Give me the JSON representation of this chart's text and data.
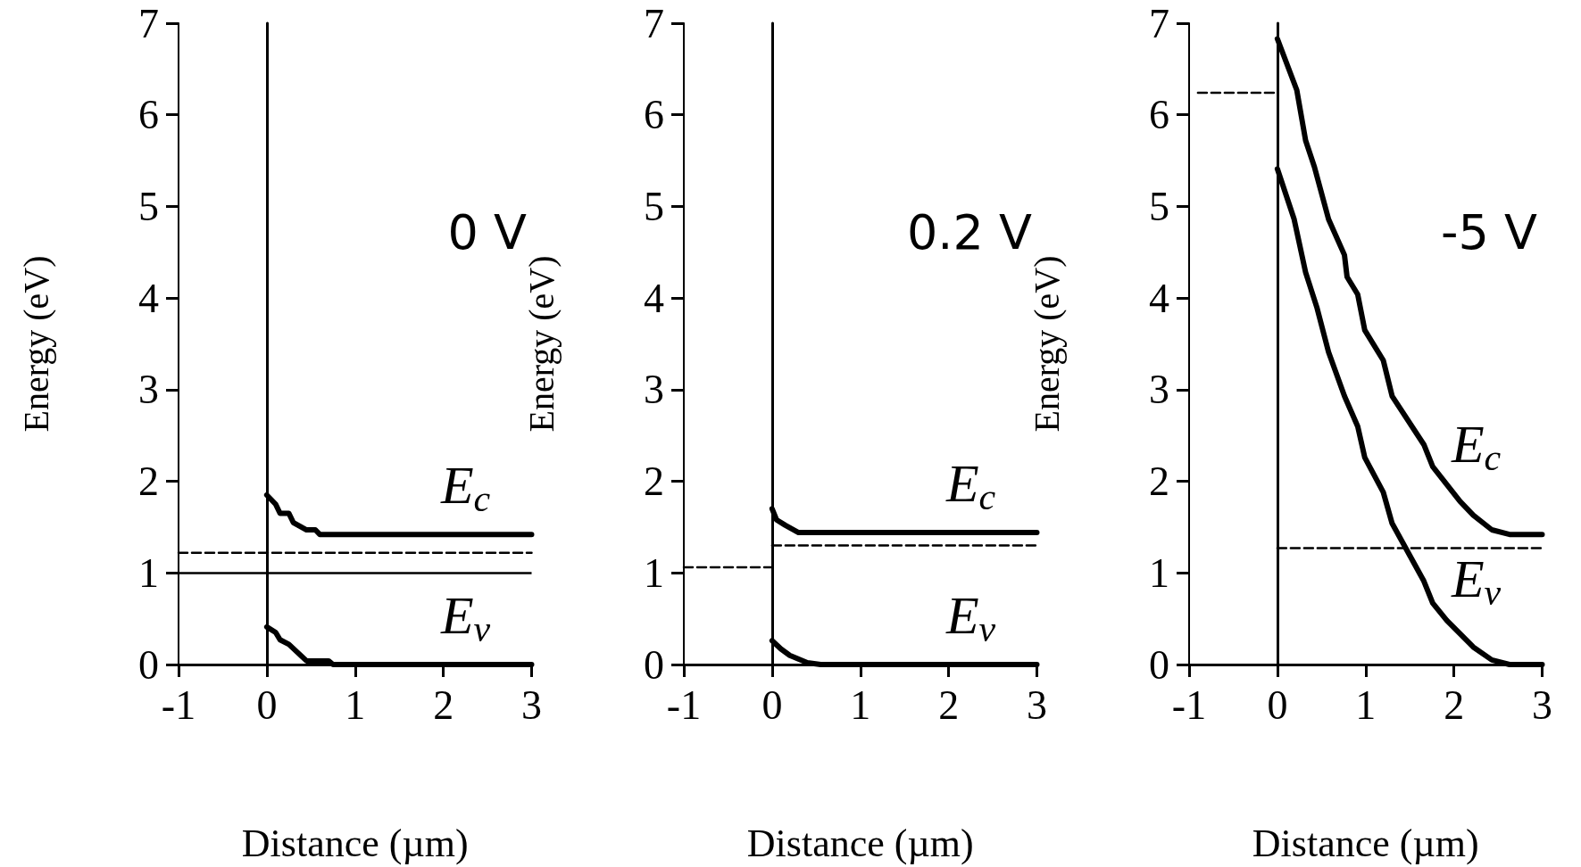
{
  "chart_data": [
    {
      "type": "line",
      "xlabel": "Distance (µm)",
      "ylabel": "Energy (eV)",
      "xlim": [
        -1,
        3
      ],
      "ylim": [
        0,
        7
      ],
      "xticks": [
        -1,
        0,
        1,
        2,
        3
      ],
      "yticks": [
        0,
        1,
        2,
        3,
        4,
        5,
        6,
        7
      ],
      "grid": false,
      "legend": false,
      "marker": "none",
      "series": [
        {
          "name": "E$_{c}$",
          "color": "#000000",
          "x": [
            0,
            0.1,
            0.15,
            0.25,
            0.3,
            0.45,
            0.55,
            0.6,
            3
          ],
          "values": [
            1.85,
            1.75,
            1.65,
            1.65,
            1.55,
            1.47,
            1.47,
            1.42,
            1.42
          ]
        },
        {
          "name": "E$_{v}$",
          "color": "#000000",
          "x": [
            0,
            0.1,
            0.15,
            0.25,
            0.45,
            0.7,
            0.75,
            3
          ],
          "values": [
            0.41,
            0.35,
            0.27,
            0.22,
            0.04,
            0.04,
            0,
            0
          ]
        },
        {
          "color": "#000000",
          "line_style": "dashed",
          "x": [
            -1,
            3
          ],
          "values": [
            1.22,
            1.22
          ]
        }
      ],
      "ref_lines": [
        {
          "axis": "x",
          "value": 0
        },
        {
          "axis": "y",
          "value": 1
        }
      ],
      "annotations": [
        "0 V"
      ]
    },
    {
      "type": "line",
      "xlabel": "Distance (µm)",
      "ylabel": "Energy (eV)",
      "xlim": [
        -1,
        3
      ],
      "ylim": [
        0,
        7
      ],
      "xticks": [
        -1,
        0,
        1,
        2,
        3
      ],
      "yticks": [
        0,
        1,
        2,
        3,
        4,
        5,
        6,
        7
      ],
      "grid": false,
      "legend": false,
      "marker": "none",
      "series": [
        {
          "name": "E$_{c}$",
          "color": "#000000",
          "x": [
            0,
            0.05,
            0.15,
            0.3,
            3
          ],
          "values": [
            1.7,
            1.58,
            1.52,
            1.44,
            1.44
          ]
        },
        {
          "name": "E$_{v}$",
          "color": "#000000",
          "x": [
            0,
            0.1,
            0.2,
            0.4,
            0.55,
            3
          ],
          "values": [
            0.26,
            0.17,
            0.1,
            0.02,
            0,
            0
          ]
        },
        {
          "color": "#000000",
          "line_style": "dashed",
          "x": [
            0,
            3
          ],
          "values": [
            1.3,
            1.3
          ]
        },
        {
          "color": "#000000",
          "line_style": "dashed",
          "x": [
            -1,
            0
          ],
          "values": [
            1.06,
            1.06
          ]
        }
      ],
      "ref_lines": [
        {
          "axis": "x",
          "value": 0
        }
      ],
      "annotations": [
        "0.2 V"
      ]
    },
    {
      "type": "line",
      "xlabel": "Distance (µm)",
      "ylabel": "Energy (eV)",
      "xlim": [
        -1,
        3
      ],
      "ylim": [
        0,
        7
      ],
      "xticks": [
        -1,
        0,
        1,
        2,
        3
      ],
      "yticks": [
        0,
        1,
        2,
        3,
        4,
        5,
        6,
        7
      ],
      "grid": false,
      "legend": false,
      "marker": "none",
      "series": [
        {
          "name": "E$_{c}$",
          "color": "#000000",
          "x": [
            0,
            0.22,
            0.32,
            0.42,
            0.58,
            0.76,
            0.79,
            0.91,
            0.99,
            1.2,
            1.3,
            1.66,
            1.76,
            2.07,
            2.22,
            2.43,
            2.63,
            3
          ],
          "values": [
            6.83,
            6.27,
            5.72,
            5.43,
            4.86,
            4.47,
            4.23,
            4.04,
            3.65,
            3.32,
            2.93,
            2.4,
            2.16,
            1.78,
            1.63,
            1.47,
            1.42,
            1.42
          ]
        },
        {
          "name": "E$_{v}$",
          "color": "#000000",
          "x": [
            0,
            0.19,
            0.32,
            0.45,
            0.58,
            0.76,
            0.91,
            0.99,
            1.2,
            1.3,
            1.66,
            1.76,
            1.92,
            2.22,
            2.43,
            2.63,
            3
          ],
          "values": [
            5.41,
            4.86,
            4.28,
            3.89,
            3.41,
            2.93,
            2.6,
            2.26,
            1.88,
            1.54,
            0.91,
            0.67,
            0.48,
            0.19,
            0.05,
            0,
            0
          ]
        },
        {
          "color": "#000000",
          "line_style": "dashed",
          "x": [
            0,
            3
          ],
          "values": [
            1.27,
            1.27
          ]
        },
        {
          "color": "#000000",
          "line_style": "dashed",
          "x": [
            -0.9,
            0
          ],
          "values": [
            6.24,
            6.24
          ]
        }
      ],
      "ref_lines": [
        {
          "axis": "x",
          "value": 0
        }
      ],
      "annotations": [
        "-5 V"
      ]
    }
  ]
}
